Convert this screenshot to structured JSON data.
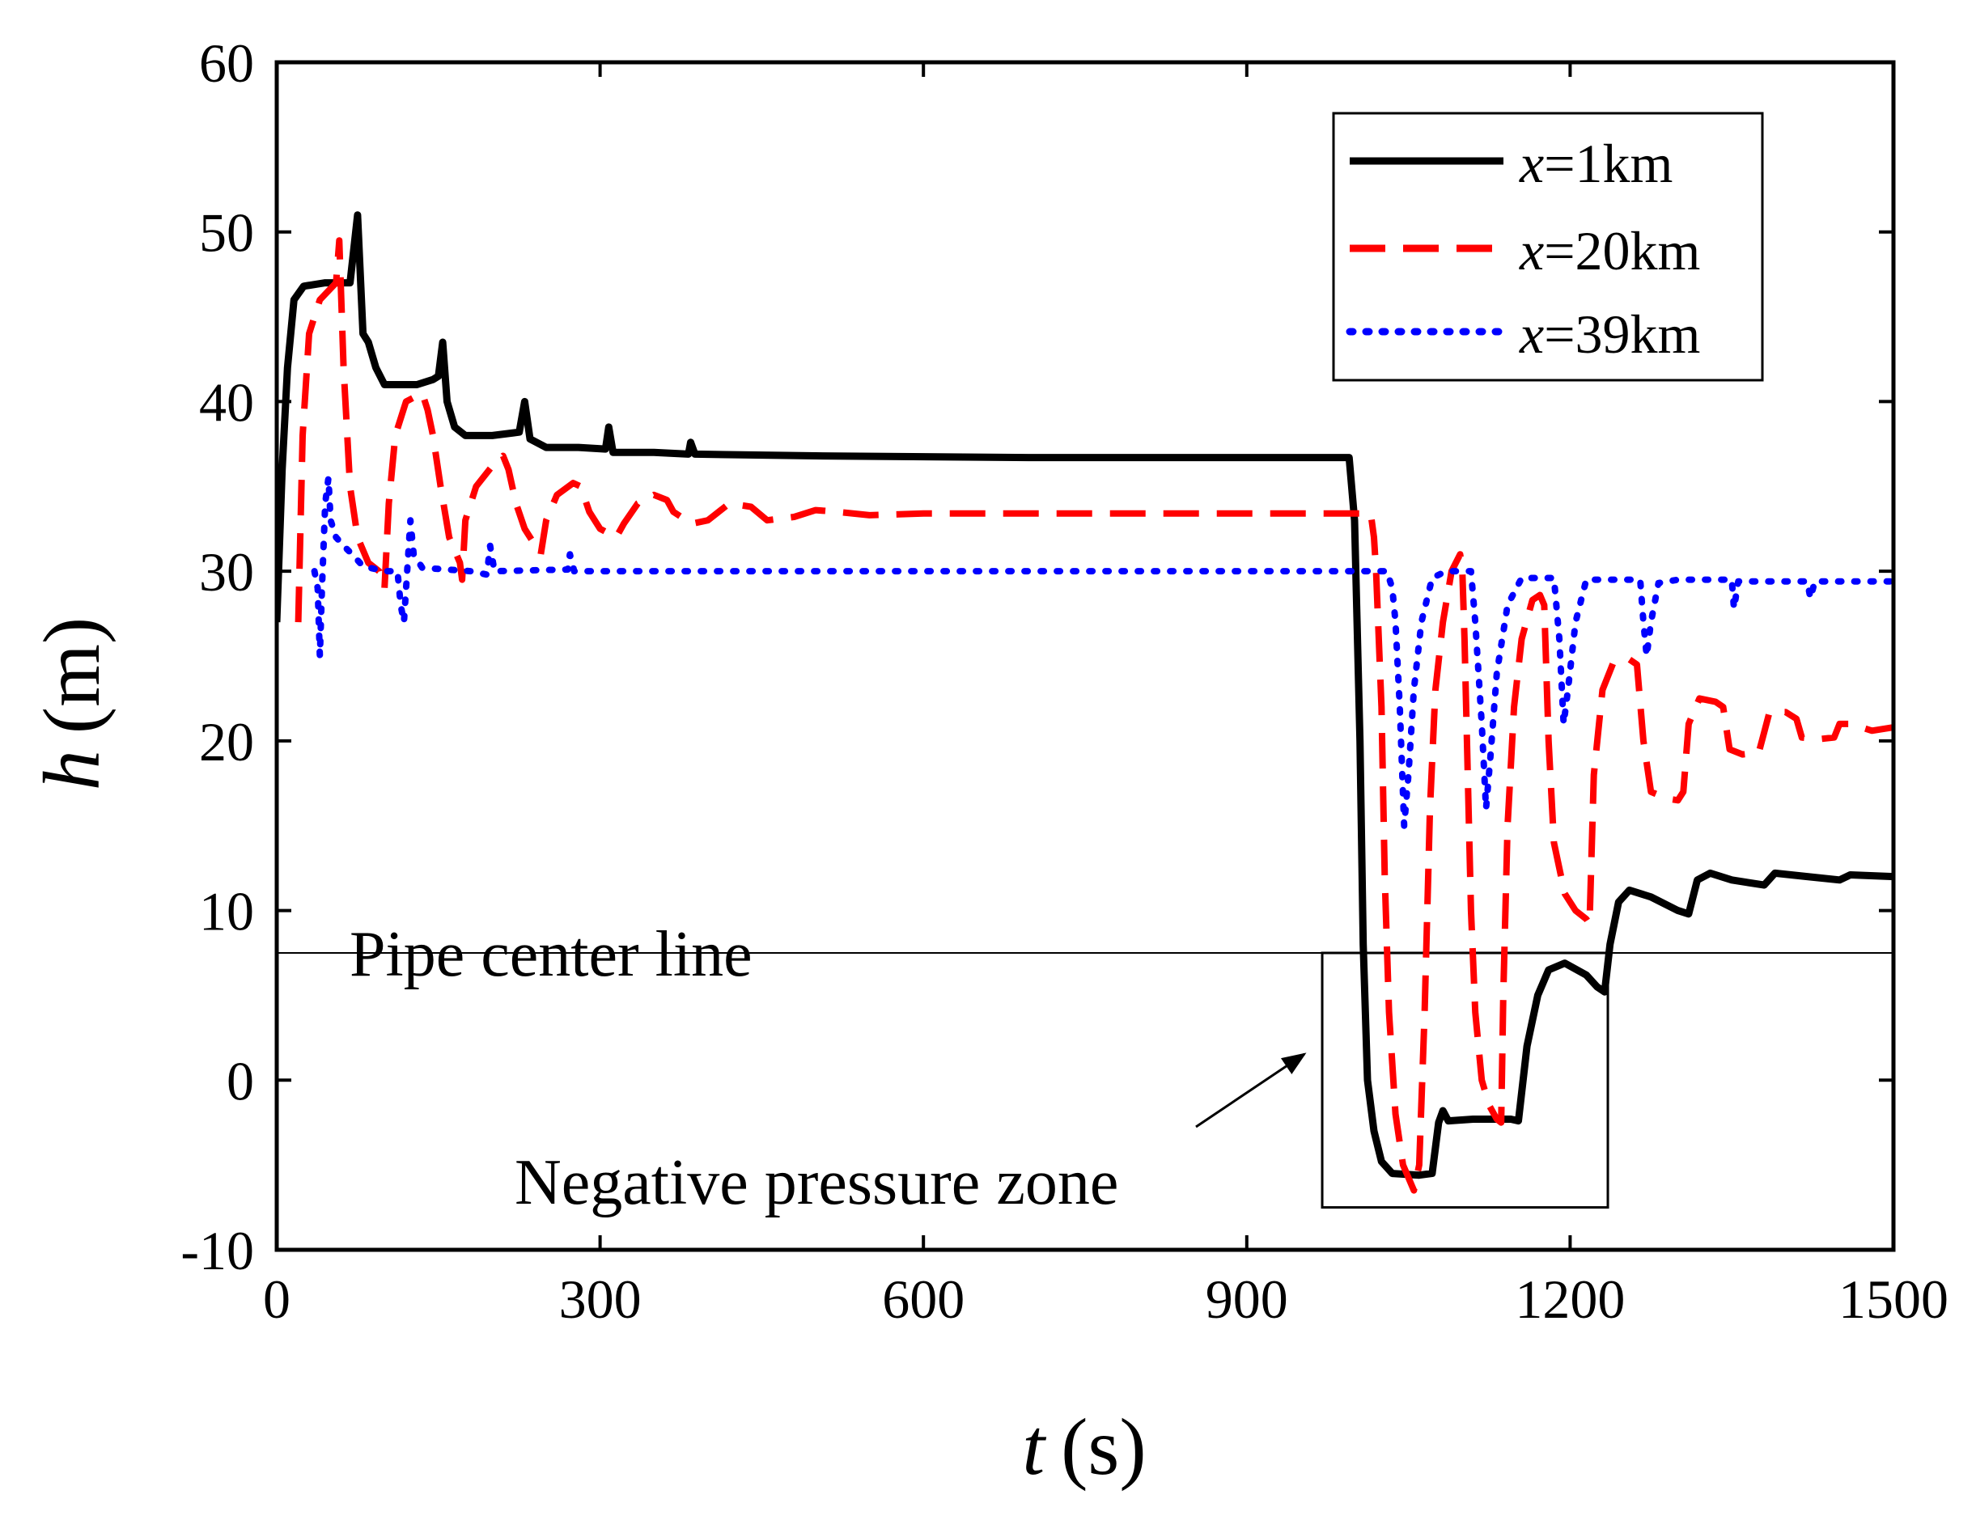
{
  "chart_data": {
    "type": "line",
    "title": "",
    "xlabel": {
      "var": "t",
      "unit": "(s)"
    },
    "ylabel": {
      "var": "h",
      "unit": "(m)"
    },
    "xlim": [
      0,
      1500
    ],
    "ylim": [
      -10,
      60
    ],
    "xticks": [
      "0",
      "300",
      "600",
      "900",
      "1200",
      "1500"
    ],
    "yticks": [
      "-10",
      "0",
      "10",
      "20",
      "30",
      "40",
      "50",
      "60"
    ],
    "grid": false,
    "legend_position": "top-right",
    "pipe_center_line": {
      "h": 7.5,
      "label": "Pipe center line"
    },
    "negative_pressure_zone": {
      "t_range": [
        970,
        1235
      ],
      "h_range": [
        -7.5,
        7.5
      ],
      "label": "Negative pressure zone"
    },
    "series": [
      {
        "name": "x=1km",
        "var": "x",
        "label_rest": "=1km",
        "color": "#000000",
        "style": "solid",
        "points": [
          [
            0,
            27
          ],
          [
            5,
            36
          ],
          [
            10,
            42
          ],
          [
            16,
            46
          ],
          [
            25,
            46.8
          ],
          [
            45,
            47
          ],
          [
            68,
            47
          ],
          [
            75,
            51
          ],
          [
            80,
            44
          ],
          [
            85,
            43.5
          ],
          [
            92,
            42
          ],
          [
            100,
            41
          ],
          [
            115,
            41
          ],
          [
            130,
            41
          ],
          [
            145,
            41.3
          ],
          [
            150,
            41.5
          ],
          [
            154,
            43.5
          ],
          [
            158,
            40
          ],
          [
            165,
            38.5
          ],
          [
            175,
            38
          ],
          [
            200,
            38
          ],
          [
            225,
            38.2
          ],
          [
            230,
            40
          ],
          [
            235,
            37.8
          ],
          [
            250,
            37.3
          ],
          [
            280,
            37.3
          ],
          [
            305,
            37.2
          ],
          [
            308,
            38.5
          ],
          [
            312,
            37
          ],
          [
            350,
            37
          ],
          [
            382,
            36.9
          ],
          [
            384,
            37.6
          ],
          [
            388,
            36.9
          ],
          [
            500,
            36.8
          ],
          [
            700,
            36.7
          ],
          [
            900,
            36.7
          ],
          [
            995,
            36.7
          ],
          [
            1000,
            33
          ],
          [
            1005,
            20
          ],
          [
            1008,
            8
          ],
          [
            1012,
            0
          ],
          [
            1018,
            -3
          ],
          [
            1025,
            -4.8
          ],
          [
            1035,
            -5.5
          ],
          [
            1060,
            -5.6
          ],
          [
            1072,
            -5.5
          ],
          [
            1078,
            -2.5
          ],
          [
            1082,
            -1.8
          ],
          [
            1087,
            -2.4
          ],
          [
            1110,
            -2.3
          ],
          [
            1145,
            -2.3
          ],
          [
            1152,
            -2.4
          ],
          [
            1160,
            2
          ],
          [
            1170,
            5
          ],
          [
            1180,
            6.5
          ],
          [
            1195,
            6.9
          ],
          [
            1215,
            6.2
          ],
          [
            1225,
            5.5
          ],
          [
            1232,
            5.2
          ],
          [
            1237,
            8
          ],
          [
            1245,
            10.5
          ],
          [
            1255,
            11.2
          ],
          [
            1275,
            10.8
          ],
          [
            1300,
            10
          ],
          [
            1310,
            9.8
          ],
          [
            1318,
            11.8
          ],
          [
            1330,
            12.2
          ],
          [
            1350,
            11.8
          ],
          [
            1380,
            11.5
          ],
          [
            1390,
            12.2
          ],
          [
            1420,
            12
          ],
          [
            1450,
            11.8
          ],
          [
            1460,
            12.1
          ],
          [
            1500,
            12
          ]
        ]
      },
      {
        "name": "x=20km",
        "var": "x",
        "label_rest": "=20km",
        "color": "#ff0000",
        "style": "dashed",
        "points": [
          [
            20,
            27
          ],
          [
            24,
            38
          ],
          [
            30,
            44
          ],
          [
            40,
            46
          ],
          [
            55,
            47
          ],
          [
            58,
            49.5
          ],
          [
            62,
            42
          ],
          [
            68,
            35
          ],
          [
            75,
            32
          ],
          [
            85,
            30.5
          ],
          [
            95,
            30
          ],
          [
            100,
            29
          ],
          [
            104,
            34
          ],
          [
            110,
            38
          ],
          [
            120,
            40
          ],
          [
            135,
            40.5
          ],
          [
            140,
            39.5
          ],
          [
            145,
            38
          ],
          [
            152,
            35
          ],
          [
            160,
            32
          ],
          [
            170,
            30.5
          ],
          [
            172,
            29.5
          ],
          [
            175,
            33
          ],
          [
            185,
            35
          ],
          [
            200,
            36.2
          ],
          [
            210,
            36.8
          ],
          [
            215,
            36
          ],
          [
            222,
            34
          ],
          [
            230,
            32.5
          ],
          [
            240,
            31.5
          ],
          [
            245,
            31
          ],
          [
            250,
            33
          ],
          [
            260,
            34.5
          ],
          [
            275,
            35.2
          ],
          [
            282,
            35
          ],
          [
            290,
            33.5
          ],
          [
            300,
            32.5
          ],
          [
            315,
            32
          ],
          [
            322,
            32.8
          ],
          [
            335,
            34
          ],
          [
            350,
            34.5
          ],
          [
            362,
            34.2
          ],
          [
            368,
            33.5
          ],
          [
            385,
            32.8
          ],
          [
            400,
            33
          ],
          [
            420,
            34
          ],
          [
            440,
            33.8
          ],
          [
            455,
            33
          ],
          [
            480,
            33.2
          ],
          [
            500,
            33.6
          ],
          [
            520,
            33.5
          ],
          [
            550,
            33.3
          ],
          [
            600,
            33.4
          ],
          [
            700,
            33.4
          ],
          [
            800,
            33.4
          ],
          [
            900,
            33.4
          ],
          [
            1015,
            33.4
          ],
          [
            1018,
            32
          ],
          [
            1020,
            30
          ],
          [
            1025,
            22
          ],
          [
            1028,
            12
          ],
          [
            1032,
            4
          ],
          [
            1038,
            -2
          ],
          [
            1045,
            -5
          ],
          [
            1055,
            -6.5
          ],
          [
            1060,
            -5
          ],
          [
            1065,
            4
          ],
          [
            1070,
            16
          ],
          [
            1075,
            23
          ],
          [
            1082,
            27
          ],
          [
            1090,
            30
          ],
          [
            1098,
            31
          ],
          [
            1100,
            30
          ],
          [
            1102,
            26
          ],
          [
            1105,
            18
          ],
          [
            1108,
            10
          ],
          [
            1112,
            4
          ],
          [
            1118,
            0
          ],
          [
            1125,
            -1.5
          ],
          [
            1132,
            -2.3
          ],
          [
            1136,
            -2.5
          ],
          [
            1138,
            5
          ],
          [
            1142,
            15
          ],
          [
            1148,
            22
          ],
          [
            1155,
            26
          ],
          [
            1165,
            28.3
          ],
          [
            1172,
            28.6
          ],
          [
            1176,
            28
          ],
          [
            1180,
            20
          ],
          [
            1185,
            14
          ],
          [
            1195,
            11
          ],
          [
            1205,
            10
          ],
          [
            1215,
            9.5
          ],
          [
            1218,
            9.2
          ],
          [
            1222,
            18
          ],
          [
            1230,
            23
          ],
          [
            1240,
            24.6
          ],
          [
            1255,
            24.8
          ],
          [
            1262,
            24.5
          ],
          [
            1268,
            20
          ],
          [
            1275,
            17
          ],
          [
            1290,
            16.6
          ],
          [
            1300,
            16.5
          ],
          [
            1305,
            17
          ],
          [
            1310,
            21
          ],
          [
            1320,
            22.5
          ],
          [
            1335,
            22.3
          ],
          [
            1342,
            22
          ],
          [
            1348,
            19.5
          ],
          [
            1360,
            19.2
          ],
          [
            1375,
            19.3
          ],
          [
            1380,
            20.5
          ],
          [
            1385,
            21.7
          ],
          [
            1400,
            21.7
          ],
          [
            1410,
            21.3
          ],
          [
            1415,
            20.2
          ],
          [
            1430,
            20.1
          ],
          [
            1445,
            20.2
          ],
          [
            1450,
            21
          ],
          [
            1460,
            21
          ],
          [
            1480,
            20.6
          ],
          [
            1500,
            20.8
          ]
        ]
      },
      {
        "name": "x=39km",
        "var": "x",
        "label_rest": "=39km",
        "color": "#0000ff",
        "style": "dotted",
        "points": [
          [
            35,
            30
          ],
          [
            38,
            29
          ],
          [
            40,
            25
          ],
          [
            42,
            29
          ],
          [
            45,
            34
          ],
          [
            48,
            35.5
          ],
          [
            50,
            33
          ],
          [
            55,
            32
          ],
          [
            62,
            31.5
          ],
          [
            70,
            31
          ],
          [
            80,
            30.3
          ],
          [
            100,
            30
          ],
          [
            112,
            30
          ],
          [
            115,
            28
          ],
          [
            118,
            27
          ],
          [
            121,
            30
          ],
          [
            124,
            33
          ],
          [
            127,
            31
          ],
          [
            135,
            30.2
          ],
          [
            180,
            30
          ],
          [
            195,
            29.8
          ],
          [
            198,
            31.5
          ],
          [
            202,
            30
          ],
          [
            270,
            30.1
          ],
          [
            272,
            31
          ],
          [
            276,
            30
          ],
          [
            360,
            30
          ],
          [
            500,
            30
          ],
          [
            700,
            30
          ],
          [
            900,
            30
          ],
          [
            1030,
            30
          ],
          [
            1035,
            29
          ],
          [
            1038,
            27
          ],
          [
            1042,
            22
          ],
          [
            1046,
            15
          ],
          [
            1050,
            18
          ],
          [
            1055,
            23
          ],
          [
            1062,
            27
          ],
          [
            1072,
            29.6
          ],
          [
            1085,
            30
          ],
          [
            1108,
            30
          ],
          [
            1112,
            27
          ],
          [
            1118,
            21
          ],
          [
            1122,
            16
          ],
          [
            1126,
            19
          ],
          [
            1132,
            24
          ],
          [
            1142,
            28
          ],
          [
            1155,
            29.6
          ],
          [
            1185,
            29.6
          ],
          [
            1190,
            26
          ],
          [
            1194,
            21
          ],
          [
            1198,
            23
          ],
          [
            1205,
            27
          ],
          [
            1215,
            29.5
          ],
          [
            1265,
            29.5
          ],
          [
            1268,
            27
          ],
          [
            1271,
            25
          ],
          [
            1275,
            27
          ],
          [
            1282,
            29.3
          ],
          [
            1300,
            29.5
          ],
          [
            1350,
            29.5
          ],
          [
            1352,
            27.8
          ],
          [
            1356,
            29.4
          ],
          [
            1420,
            29.4
          ],
          [
            1423,
            28.4
          ],
          [
            1427,
            29.4
          ],
          [
            1500,
            29.4
          ]
        ]
      }
    ]
  }
}
